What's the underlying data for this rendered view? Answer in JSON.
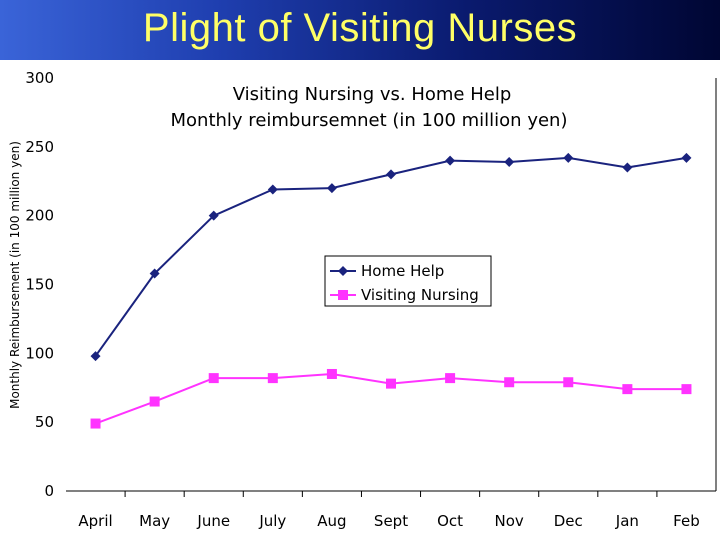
{
  "header": {
    "title": "Plight of Visiting Nurses"
  },
  "colors": {
    "home_help": "#1a237e",
    "visiting_nursing": "#ff33ff"
  },
  "chart_data": {
    "type": "line",
    "title": "Visiting Nursing vs. Home Help",
    "subtitle": "Monthly reimbursemnet (in 100 million yen)",
    "xlabel": "",
    "ylabel": "Monthly Reimbursement (in 100 million yen)",
    "categories": [
      "April",
      "May",
      "June",
      "July",
      "Aug",
      "Sept",
      "Oct",
      "Nov",
      "Dec",
      "Jan",
      "Feb"
    ],
    "ylim": [
      0,
      300
    ],
    "yticks": [
      0,
      50,
      100,
      150,
      200,
      250,
      300
    ],
    "grid": false,
    "legend": "center",
    "series": [
      {
        "name": "Home Help",
        "marker": "diamond",
        "color": "#1a237e",
        "values": [
          98,
          158,
          200,
          219,
          220,
          230,
          240,
          239,
          242,
          235,
          242
        ]
      },
      {
        "name": "Visiting Nursing",
        "marker": "square",
        "color": "#ff33ff",
        "values": [
          49,
          65,
          82,
          82,
          85,
          78,
          82,
          79,
          79,
          74,
          74
        ]
      }
    ]
  }
}
